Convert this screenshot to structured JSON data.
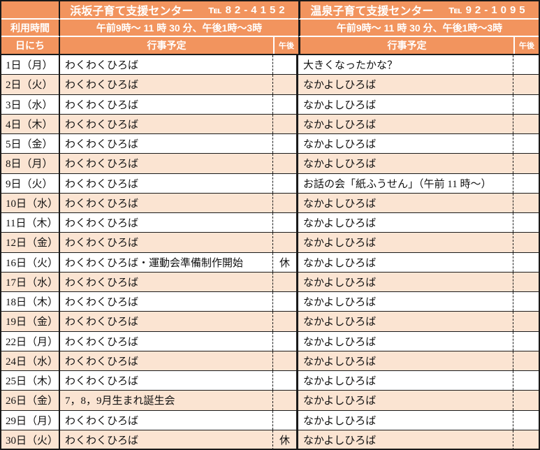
{
  "header": {
    "centers": [
      {
        "name": "浜坂子育て支援センター",
        "tel": "℡82-4152"
      },
      {
        "name": "温泉子育て支援センター",
        "tel": "℡92-1095"
      }
    ],
    "usage_label": "利用時間",
    "hours_left": "午前9時～ 11 時 30 分、午後1時～3時",
    "hours_right": "午前9時～ 11 時 30 分、午後1時～3時",
    "date_label": "日にち",
    "schedule_label_left": "行事予定",
    "schedule_label_right": "行事予定",
    "pm_label_left": "午後",
    "pm_label_right": "午後"
  },
  "colors": {
    "header_bg": "#F2945E",
    "row_bg": "#FFFFFF",
    "row_alt_bg": "#FBE4D2",
    "border": "#1A1A1A",
    "header_text": "#FFFFFF"
  },
  "rows": [
    {
      "date": "1日（月）",
      "hamasaka": "わくわくひろば",
      "hamasaka_pm": "",
      "onsen": "大きくなったかな？",
      "onsen_pm": ""
    },
    {
      "date": "2日（火）",
      "hamasaka": "わくわくひろば",
      "hamasaka_pm": "",
      "onsen": "なかよしひろば",
      "onsen_pm": ""
    },
    {
      "date": "3日（水）",
      "hamasaka": "わくわくひろば",
      "hamasaka_pm": "",
      "onsen": "なかよしひろば",
      "onsen_pm": ""
    },
    {
      "date": "4日（木）",
      "hamasaka": "わくわくひろば",
      "hamasaka_pm": "",
      "onsen": "なかよしひろば",
      "onsen_pm": ""
    },
    {
      "date": "5日（金）",
      "hamasaka": "わくわくひろば",
      "hamasaka_pm": "",
      "onsen": "なかよしひろば",
      "onsen_pm": ""
    },
    {
      "date": "8日（月）",
      "hamasaka": "わくわくひろば",
      "hamasaka_pm": "",
      "onsen": "なかよしひろば",
      "onsen_pm": ""
    },
    {
      "date": "9日（火）",
      "hamasaka": "わくわくひろば",
      "hamasaka_pm": "",
      "onsen": "お話の会「紙ふうせん」（午前 11 時～）",
      "onsen_pm": ""
    },
    {
      "date": "10日（水）",
      "hamasaka": "わくわくひろば",
      "hamasaka_pm": "",
      "onsen": "なかよしひろば",
      "onsen_pm": ""
    },
    {
      "date": "11日（木）",
      "hamasaka": "わくわくひろば",
      "hamasaka_pm": "",
      "onsen": "なかよしひろば",
      "onsen_pm": ""
    },
    {
      "date": "12日（金）",
      "hamasaka": "わくわくひろば",
      "hamasaka_pm": "",
      "onsen": "なかよしひろば",
      "onsen_pm": ""
    },
    {
      "date": "16日（火）",
      "hamasaka": "わくわくひろば・運動会準備制作開始",
      "hamasaka_pm": "休",
      "onsen": "なかよしひろば",
      "onsen_pm": ""
    },
    {
      "date": "17日（水）",
      "hamasaka": "わくわくひろば",
      "hamasaka_pm": "",
      "onsen": "なかよしひろば",
      "onsen_pm": ""
    },
    {
      "date": "18日（木）",
      "hamasaka": "わくわくひろば",
      "hamasaka_pm": "",
      "onsen": "なかよしひろば",
      "onsen_pm": ""
    },
    {
      "date": "19日（金）",
      "hamasaka": "わくわくひろば",
      "hamasaka_pm": "",
      "onsen": "なかよしひろば",
      "onsen_pm": ""
    },
    {
      "date": "22日（月）",
      "hamasaka": "わくわくひろば",
      "hamasaka_pm": "",
      "onsen": "なかよしひろば",
      "onsen_pm": ""
    },
    {
      "date": "24日（水）",
      "hamasaka": "わくわくひろば",
      "hamasaka_pm": "",
      "onsen": "なかよしひろば",
      "onsen_pm": ""
    },
    {
      "date": "25日（木）",
      "hamasaka": "わくわくひろば",
      "hamasaka_pm": "",
      "onsen": "なかよしひろば",
      "onsen_pm": ""
    },
    {
      "date": "26日（金）",
      "hamasaka": "7，8，9月生まれ誕生会",
      "hamasaka_pm": "",
      "onsen": "なかよしひろば",
      "onsen_pm": ""
    },
    {
      "date": "29日（月）",
      "hamasaka": "わくわくひろば",
      "hamasaka_pm": "",
      "onsen": "なかよしひろば",
      "onsen_pm": ""
    },
    {
      "date": "30日（火）",
      "hamasaka": "わくわくひろば",
      "hamasaka_pm": "休",
      "onsen": "なかよしひろば",
      "onsen_pm": ""
    }
  ]
}
